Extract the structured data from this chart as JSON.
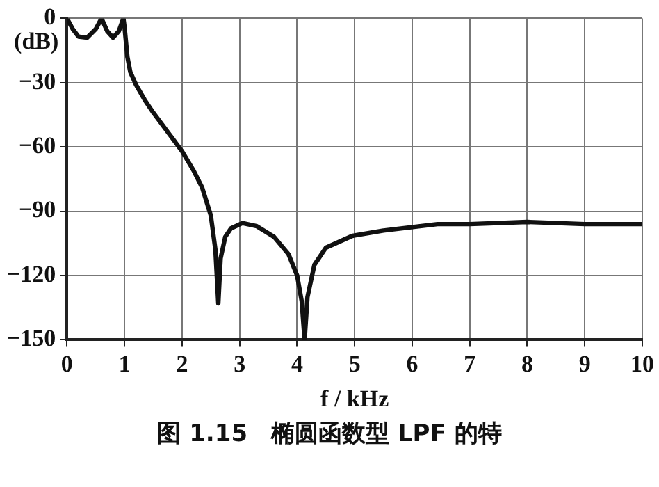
{
  "chart_data": {
    "type": "line",
    "ylabel": "(dB)",
    "xlabel": "f / kHz",
    "annotations": [
      "图 1.15　椭圆函数型 LPF 的特"
    ],
    "x": [
      0,
      0.1,
      0.2,
      0.35,
      0.5,
      0.6,
      0.7,
      0.8,
      0.9,
      0.98,
      1.0,
      1.05,
      1.1,
      1.2,
      1.35,
      1.5,
      1.75,
      2.0,
      2.2,
      2.35,
      2.5,
      2.58,
      2.63,
      2.67,
      2.75,
      2.85,
      3.05,
      3.3,
      3.6,
      3.85,
      4.0,
      4.08,
      4.13,
      4.18,
      4.3,
      4.5,
      4.96,
      5.5,
      6.44,
      7,
      8,
      9,
      10
    ],
    "series": [
      {
        "color": "#111111",
        "values": [
          0,
          -5,
          -8.5,
          -9,
          -5,
          0,
          -6,
          -9,
          -6,
          0,
          -4,
          -18,
          -25,
          -31,
          -38,
          -44,
          -53,
          -62,
          -71,
          -79,
          -92,
          -108,
          -133,
          -112,
          -102,
          -98,
          -95.5,
          -97,
          -102,
          -110,
          -120,
          -132,
          -150,
          -130,
          -115,
          -107,
          -101.5,
          -99,
          -96,
          -96,
          -95,
          -96,
          -96
        ]
      }
    ],
    "xlim": [
      0,
      10
    ],
    "xticks": [
      0,
      1,
      2,
      3,
      4,
      5,
      6,
      7,
      8,
      9,
      10
    ],
    "ylim": [
      -150,
      0
    ],
    "yticks": [
      0,
      -30,
      -60,
      -90,
      -120,
      -150
    ],
    "grid": true,
    "line_style": "solid",
    "marker": "none",
    "legend": false
  }
}
